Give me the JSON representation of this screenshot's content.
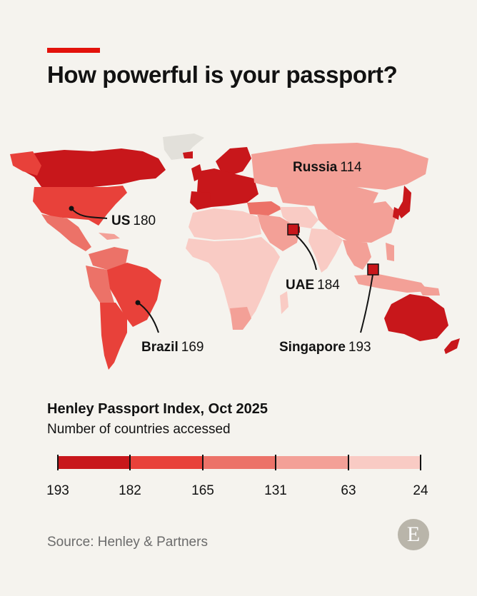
{
  "headline": "How powerful is your passport?",
  "map": {
    "callouts": [
      {
        "name": "Russia",
        "value": "114"
      },
      {
        "name": "US",
        "value": "180"
      },
      {
        "name": "UAE",
        "value": "184"
      },
      {
        "name": "Brazil",
        "value": "169"
      },
      {
        "name": "Singapore",
        "value": "193"
      }
    ]
  },
  "legend": {
    "title": "Henley Passport Index, Oct 2025",
    "subtitle": "Number of countries accessed",
    "breaks": [
      "193",
      "182",
      "165",
      "131",
      "63",
      "24"
    ],
    "colors": [
      "#c8171b",
      "#e8413a",
      "#ec7268",
      "#f3a097",
      "#f9cbc4"
    ]
  },
  "source": "Source: Henley & Partners",
  "logo": "E",
  "colors": {
    "accent": "#e3120b",
    "background": "#f5f3ee",
    "no_data": "#e2e0da"
  }
}
